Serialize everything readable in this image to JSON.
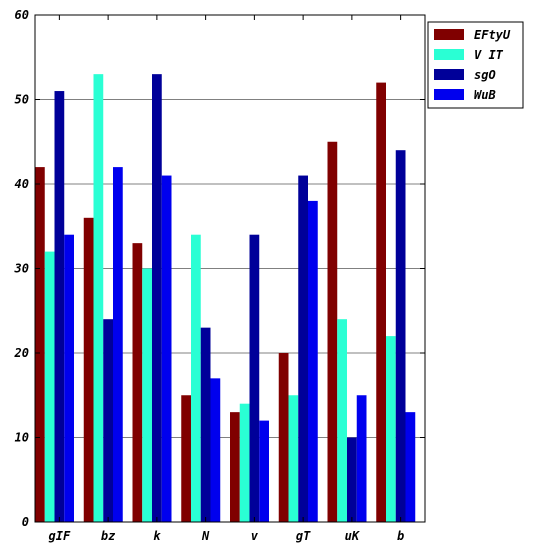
{
  "chart_data": {
    "type": "bar",
    "title": "",
    "xlabel": "",
    "ylabel": "",
    "categories": [
      "gIF",
      "bz",
      "k",
      "N",
      "v",
      "gT",
      "uK",
      "b"
    ],
    "series": [
      {
        "name": "EFtyU",
        "color": "#800000",
        "values": [
          42,
          36,
          33,
          15,
          13,
          20,
          45,
          52
        ]
      },
      {
        "name": "V IT",
        "color": "#2affd4",
        "values": [
          32,
          53,
          30,
          34,
          14,
          15,
          24,
          22
        ]
      },
      {
        "name": "sgO",
        "color": "#000099",
        "values": [
          51,
          24,
          53,
          23,
          34,
          41,
          10,
          44
        ]
      },
      {
        "name": "WuB",
        "color": "#0000ee",
        "values": [
          34,
          42,
          41,
          17,
          12,
          38,
          15,
          13
        ]
      }
    ],
    "ylim": [
      0,
      60
    ],
    "yticks": [
      0,
      10,
      20,
      30,
      40,
      50,
      60
    ],
    "grid": true,
    "legend": "top-right"
  }
}
